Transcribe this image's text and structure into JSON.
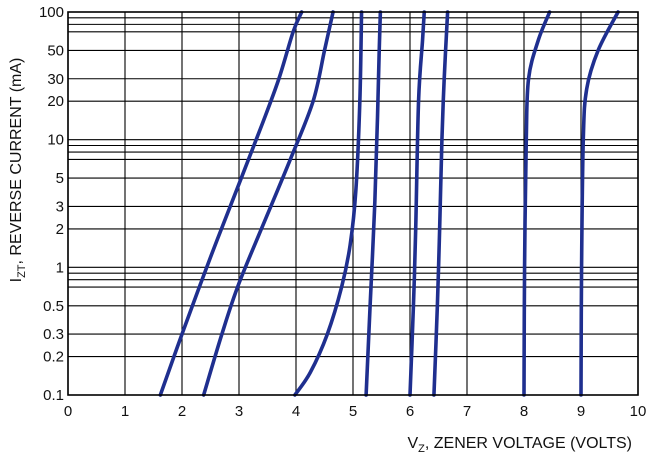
{
  "chart_data": {
    "type": "line",
    "title": "",
    "xlabel": {
      "main": "V",
      "sub": "Z",
      "rest": ", ZENER VOLTAGE (VOLTS)"
    },
    "ylabel": {
      "main": "I",
      "sub": "ZT",
      "rest": ", REVERSE CURRENT (mA)"
    },
    "xlim": [
      0,
      10
    ],
    "ylim": [
      0.1,
      100
    ],
    "yscale": "log",
    "grid": true,
    "legend": "none",
    "xticks": [
      "0",
      "1",
      "2",
      "3",
      "4",
      "5",
      "6",
      "7",
      "8",
      "9",
      "10"
    ],
    "yticks": [
      {
        "value": 0.1,
        "label": "0.1"
      },
      {
        "value": 0.2,
        "label": "0.2"
      },
      {
        "value": 0.3,
        "label": "0.3"
      },
      {
        "value": 0.5,
        "label": "0.5"
      },
      {
        "value": 1,
        "label": "1"
      },
      {
        "value": 2,
        "label": "2"
      },
      {
        "value": 3,
        "label": "3"
      },
      {
        "value": 5,
        "label": "5"
      },
      {
        "value": 10,
        "label": "10"
      },
      {
        "value": 20,
        "label": "20"
      },
      {
        "value": 30,
        "label": "30"
      },
      {
        "value": 50,
        "label": "50"
      },
      {
        "value": 100,
        "label": "100"
      }
    ],
    "ygrid_extra": [
      0.7,
      0.8,
      0.9,
      7,
      8,
      9,
      70,
      80,
      90
    ],
    "series_color": "#1f2f8f",
    "series": [
      {
        "points": [
          [
            1.62,
            0.1
          ],
          [
            2.0,
            0.3
          ],
          [
            2.5,
            1.2
          ],
          [
            3.0,
            4.5
          ],
          [
            3.4,
            13
          ],
          [
            3.7,
            30
          ],
          [
            3.95,
            70
          ],
          [
            4.1,
            100
          ]
        ]
      },
      {
        "points": [
          [
            2.38,
            0.1
          ],
          [
            2.7,
            0.3
          ],
          [
            3.0,
            0.75
          ],
          [
            3.5,
            2.6
          ],
          [
            3.9,
            7
          ],
          [
            4.3,
            20
          ],
          [
            4.5,
            50
          ],
          [
            4.65,
            100
          ]
        ]
      },
      {
        "points": [
          [
            3.98,
            0.1
          ],
          [
            4.25,
            0.15
          ],
          [
            4.55,
            0.3
          ],
          [
            4.8,
            0.7
          ],
          [
            4.95,
            1.5
          ],
          [
            5.05,
            4
          ],
          [
            5.12,
            20
          ],
          [
            5.15,
            100
          ]
        ]
      },
      {
        "points": [
          [
            5.23,
            0.1
          ],
          [
            5.3,
            0.5
          ],
          [
            5.38,
            3
          ],
          [
            5.43,
            15
          ],
          [
            5.46,
            50
          ],
          [
            5.48,
            100
          ]
        ]
      },
      {
        "points": [
          [
            6.0,
            0.1
          ],
          [
            6.06,
            0.5
          ],
          [
            6.1,
            2
          ],
          [
            6.15,
            20
          ],
          [
            6.22,
            60
          ],
          [
            6.25,
            100
          ]
        ]
      },
      {
        "points": [
          [
            6.42,
            0.1
          ],
          [
            6.48,
            0.5
          ],
          [
            6.52,
            2
          ],
          [
            6.56,
            10
          ],
          [
            6.6,
            30
          ],
          [
            6.66,
            100
          ]
        ]
      },
      {
        "points": [
          [
            8.0,
            0.1
          ],
          [
            8.01,
            1
          ],
          [
            8.04,
            10
          ],
          [
            8.08,
            30
          ],
          [
            8.25,
            60
          ],
          [
            8.45,
            100
          ]
        ]
      },
      {
        "points": [
          [
            9.0,
            0.1
          ],
          [
            9.01,
            1
          ],
          [
            9.04,
            10
          ],
          [
            9.1,
            25
          ],
          [
            9.3,
            50
          ],
          [
            9.65,
            100
          ]
        ]
      }
    ]
  }
}
